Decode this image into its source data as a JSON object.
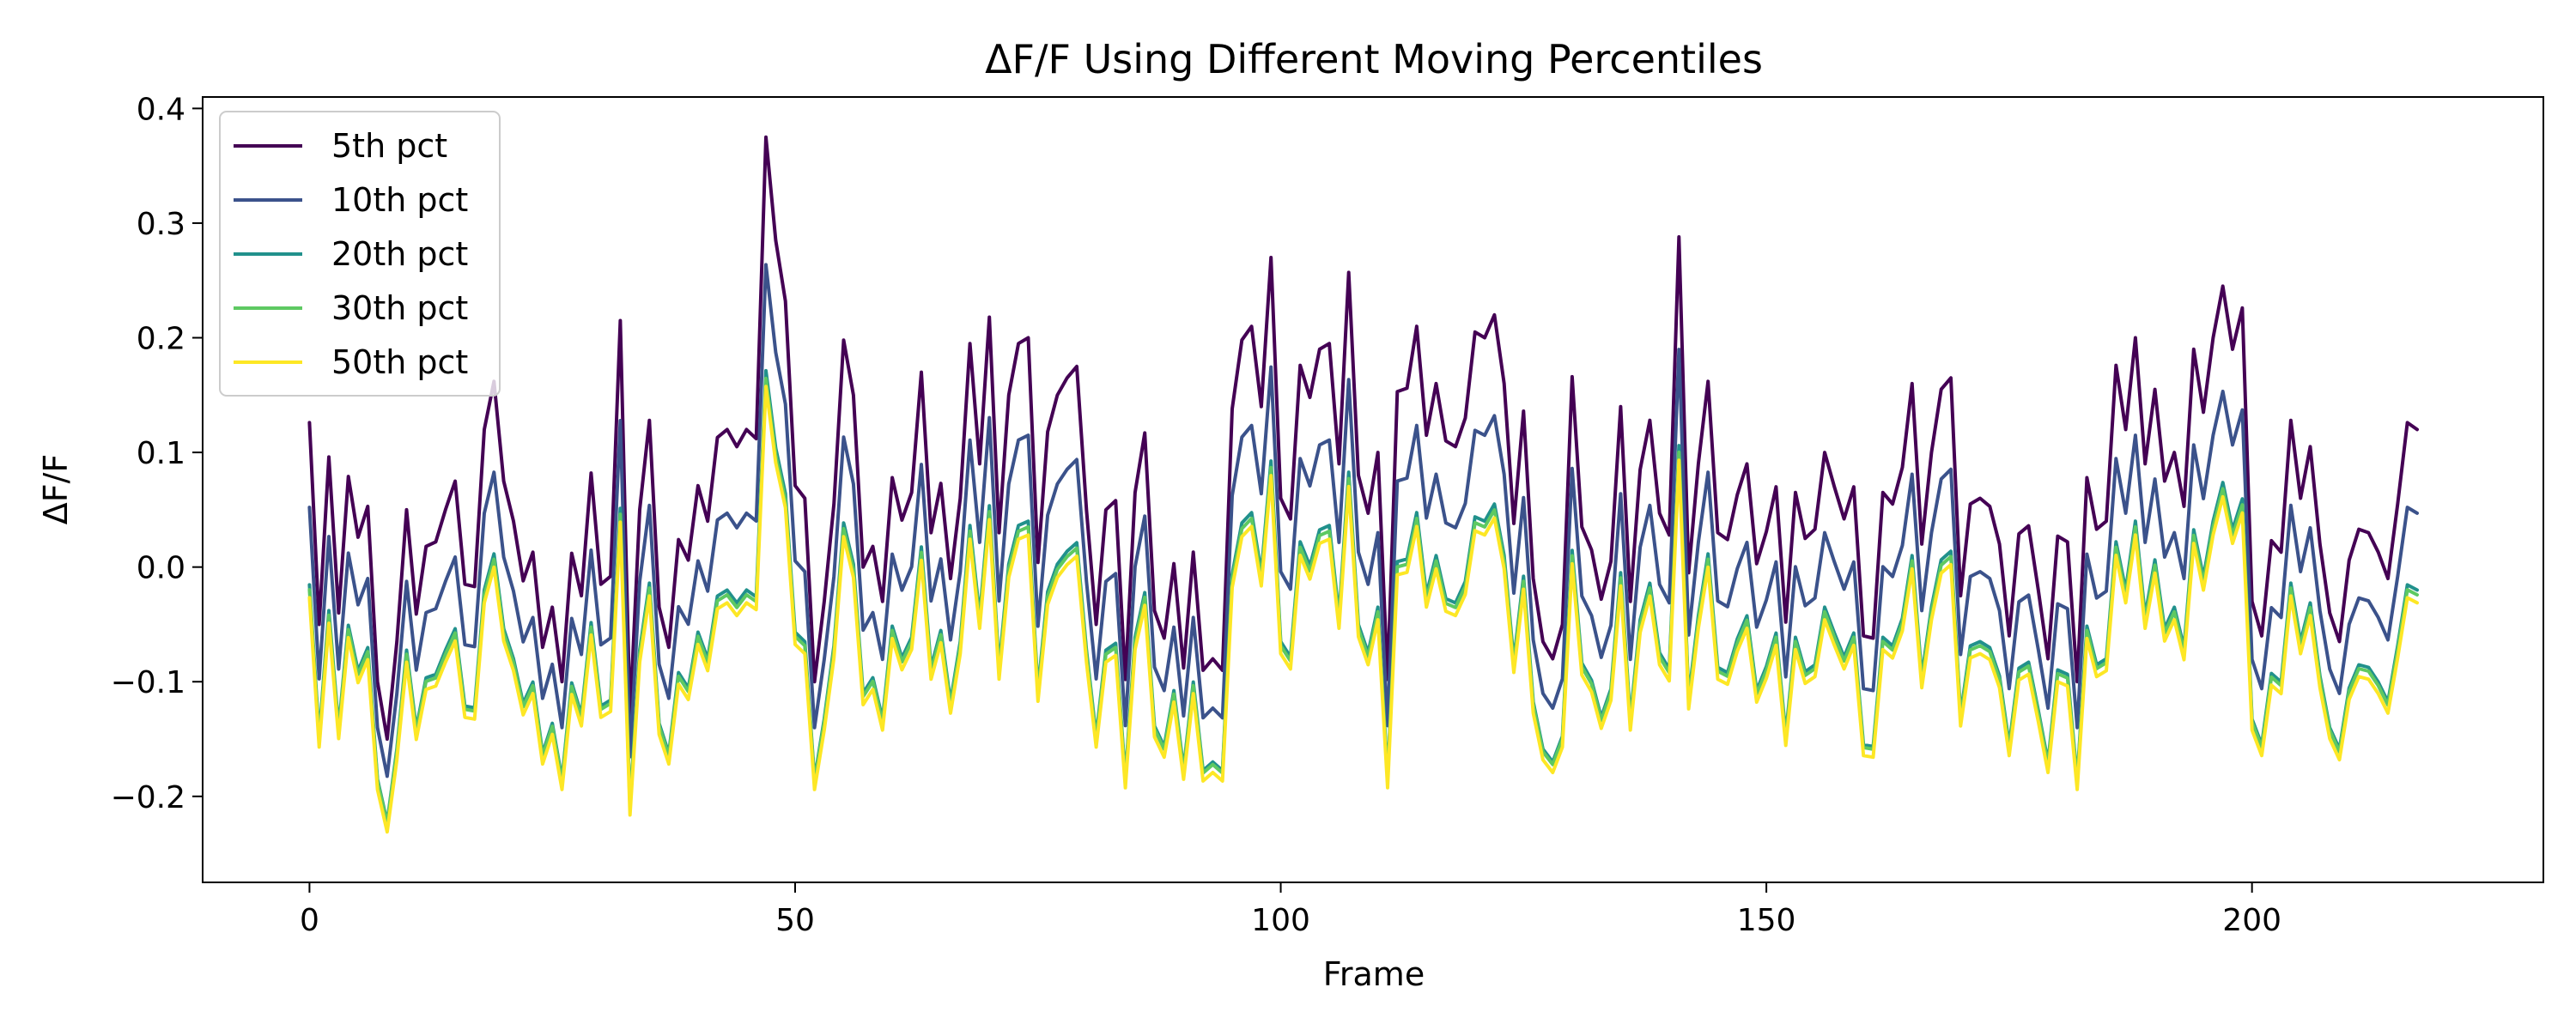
{
  "chart_data": {
    "type": "line",
    "title": "ΔF/F Using Different Moving Percentiles",
    "xlabel": "Frame",
    "ylabel": "ΔF/F",
    "xlim": [
      -11,
      230
    ],
    "ylim": [
      -0.275,
      0.41
    ],
    "xticks": [
      0,
      50,
      100,
      150,
      200
    ],
    "yticks": [
      -0.2,
      -0.1,
      0.0,
      0.1,
      0.2,
      0.3,
      0.4
    ],
    "ytick_labels": [
      "−0.2",
      "−0.1",
      "0.0",
      "0.1",
      "0.2",
      "0.3",
      "0.4"
    ],
    "grid": false,
    "legend_position": "upper-left",
    "x_start": 0,
    "base_series": [
      0.126,
      -0.05,
      0.096,
      -0.04,
      0.079,
      0.026,
      0.053,
      -0.1,
      -0.15,
      -0.065,
      0.05,
      -0.041,
      0.018,
      0.022,
      0.05,
      0.075,
      -0.015,
      -0.017,
      0.12,
      0.162,
      0.075,
      0.04,
      -0.012,
      0.013,
      -0.07,
      -0.035,
      -0.1,
      0.012,
      -0.025,
      0.082,
      -0.015,
      -0.008,
      0.215,
      -0.13,
      0.05,
      0.128,
      -0.035,
      -0.07,
      0.024,
      0.006,
      0.071,
      0.04,
      0.113,
      0.12,
      0.105,
      0.12,
      0.112,
      0.375,
      0.285,
      0.232,
      0.071,
      0.06,
      -0.1,
      -0.03,
      0.055,
      0.198,
      0.15,
      0.0,
      0.018,
      -0.03,
      0.078,
      0.041,
      0.065,
      0.17,
      0.03,
      0.073,
      -0.01,
      0.06,
      0.195,
      0.09,
      0.218,
      0.03,
      0.15,
      0.195,
      0.2,
      0.004,
      0.118,
      0.15,
      0.165,
      0.175,
      0.05,
      -0.05,
      0.05,
      0.058,
      -0.098,
      0.065,
      0.117,
      -0.038,
      -0.062,
      0.003,
      -0.088,
      0.013,
      -0.09,
      -0.08,
      -0.09,
      0.138,
      0.198,
      0.21,
      0.14,
      0.27,
      0.06,
      0.042,
      0.176,
      0.148,
      0.19,
      0.195,
      0.09,
      0.257,
      0.08,
      0.047,
      0.1,
      -0.098,
      0.153,
      0.156,
      0.21,
      0.115,
      0.16,
      0.11,
      0.105,
      0.13,
      0.205,
      0.2,
      0.22,
      0.16,
      0.038,
      0.136,
      -0.01,
      -0.065,
      -0.08,
      -0.05,
      0.166,
      0.035,
      0.015,
      -0.028,
      0.005,
      0.14,
      -0.03,
      0.085,
      0.128,
      0.047,
      0.028,
      0.288,
      -0.005,
      0.09,
      0.162,
      0.03,
      0.024,
      0.063,
      0.09,
      0.003,
      0.031,
      0.07,
      -0.048,
      0.065,
      0.025,
      0.033,
      0.1,
      0.07,
      0.042,
      0.07,
      -0.06,
      -0.062,
      0.065,
      0.055,
      0.087,
      0.16,
      0.02,
      0.1,
      0.155,
      0.165,
      -0.025,
      0.055,
      0.06,
      0.053,
      0.02,
      -0.06,
      0.029,
      0.036,
      -0.02,
      -0.08,
      0.027,
      0.022,
      -0.1,
      0.078,
      0.033,
      0.04,
      0.176,
      0.12,
      0.2,
      0.09,
      0.155,
      0.075,
      0.1,
      0.053,
      0.19,
      0.135,
      0.2,
      0.245,
      0.19,
      0.226,
      -0.03,
      -0.06,
      0.023,
      0.013,
      0.128,
      0.06,
      0.105,
      0.02,
      -0.04,
      -0.065,
      0.006,
      0.033,
      0.03,
      0.013,
      -0.01,
      0.055,
      0.126,
      0.12
    ],
    "series": [
      {
        "name": "5th pct",
        "color": "#440154",
        "offset": 0.0,
        "scale": 1.0
      },
      {
        "name": "10th pct",
        "color": "#3b528b",
        "offset": -0.055,
        "scale": 0.85
      },
      {
        "name": "20th pct",
        "color": "#21918c",
        "offset": -0.11,
        "scale": 0.75
      },
      {
        "name": "30th pct",
        "color": "#5ec962",
        "offset": -0.113,
        "scale": 0.74
      },
      {
        "name": "50th pct",
        "color": "#fde725",
        "offset": -0.12,
        "scale": 0.74
      }
    ]
  }
}
